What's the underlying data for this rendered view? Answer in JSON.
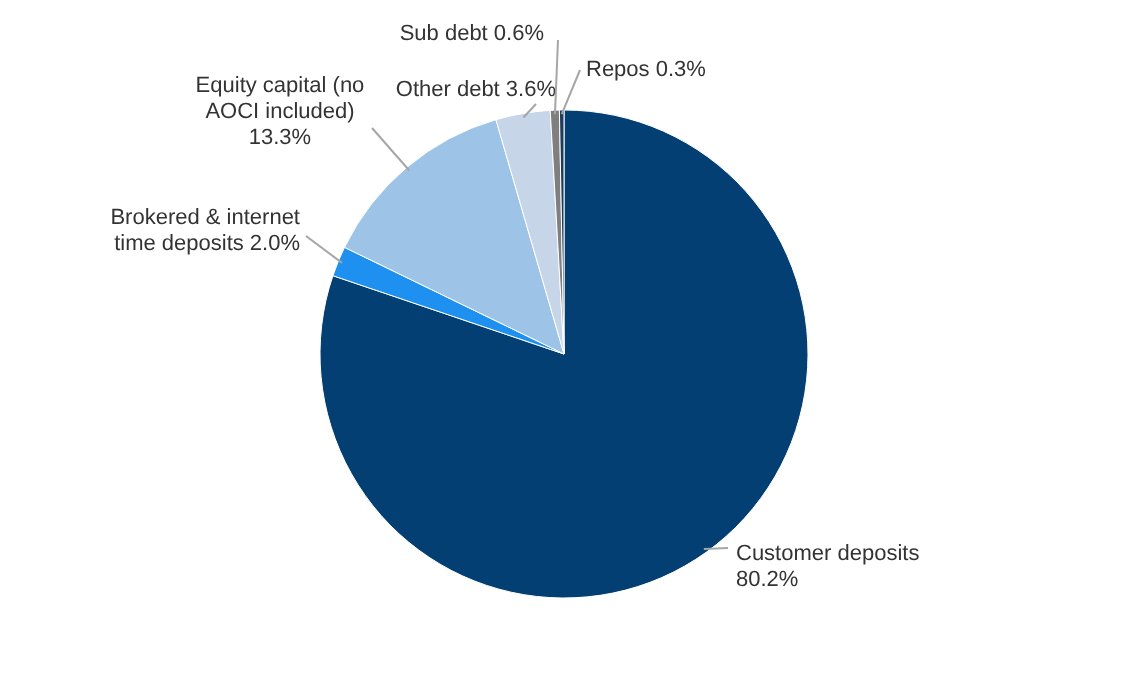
{
  "chart_data": {
    "type": "pie",
    "categories": [
      "Customer deposits",
      "Brokered & internet time deposits",
      "Equity capital (no AOCI included)",
      "Other debt",
      "Sub debt",
      "Repos"
    ],
    "values": [
      80.2,
      2.0,
      13.3,
      3.6,
      0.6,
      0.3
    ],
    "value_labels": [
      "80.2%",
      "2.0%",
      "13.3%",
      "3.6%",
      "0.6%",
      "0.3%"
    ],
    "colors": [
      "#033f73",
      "#1e90f0",
      "#9dc3e6",
      "#c6d5e8",
      "#7f7f7f",
      "#1f3b5c"
    ]
  }
}
